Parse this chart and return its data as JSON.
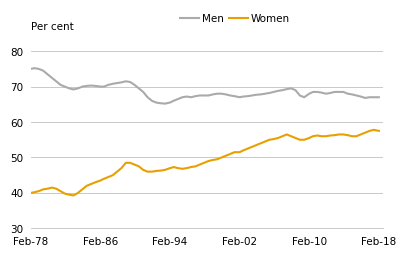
{
  "title": "",
  "ylabel": "Per cent",
  "ylim": [
    30,
    85
  ],
  "yticks": [
    30,
    40,
    50,
    60,
    70,
    80
  ],
  "xtick_labels": [
    "Feb-78",
    "Feb-86",
    "Feb-94",
    "Feb-02",
    "Feb-10",
    "Feb-18"
  ],
  "xtick_positions": [
    1978.08,
    1986.08,
    1994.08,
    2002.08,
    2010.08,
    2018.08
  ],
  "men_color": "#aaaaaa",
  "women_color": "#E8A000",
  "line_width": 1.5,
  "legend_men": "Men",
  "legend_women": "Women",
  "background_color": "#ffffff",
  "grid_color": "#c0c0c0",
  "men_data": [
    [
      1978.08,
      75.0
    ],
    [
      1978.5,
      75.2
    ],
    [
      1979.0,
      75.0
    ],
    [
      1979.5,
      74.5
    ],
    [
      1980.0,
      73.5
    ],
    [
      1980.5,
      72.5
    ],
    [
      1981.0,
      71.5
    ],
    [
      1981.5,
      70.5
    ],
    [
      1982.0,
      70.0
    ],
    [
      1982.5,
      69.5
    ],
    [
      1983.0,
      69.2
    ],
    [
      1983.5,
      69.5
    ],
    [
      1984.0,
      70.0
    ],
    [
      1984.5,
      70.2
    ],
    [
      1985.0,
      70.3
    ],
    [
      1985.5,
      70.2
    ],
    [
      1986.08,
      70.0
    ],
    [
      1986.5,
      70.0
    ],
    [
      1987.0,
      70.5
    ],
    [
      1987.5,
      70.8
    ],
    [
      1988.0,
      71.0
    ],
    [
      1988.5,
      71.2
    ],
    [
      1989.0,
      71.5
    ],
    [
      1989.5,
      71.3
    ],
    [
      1990.0,
      70.5
    ],
    [
      1990.5,
      69.5
    ],
    [
      1991.0,
      68.5
    ],
    [
      1991.5,
      67.0
    ],
    [
      1992.0,
      66.0
    ],
    [
      1992.5,
      65.5
    ],
    [
      1993.0,
      65.3
    ],
    [
      1993.5,
      65.2
    ],
    [
      1994.08,
      65.5
    ],
    [
      1994.5,
      66.0
    ],
    [
      1995.0,
      66.5
    ],
    [
      1995.5,
      67.0
    ],
    [
      1996.0,
      67.2
    ],
    [
      1996.5,
      67.0
    ],
    [
      1997.0,
      67.3
    ],
    [
      1997.5,
      67.5
    ],
    [
      1998.0,
      67.5
    ],
    [
      1998.5,
      67.5
    ],
    [
      1999.0,
      67.8
    ],
    [
      1999.5,
      68.0
    ],
    [
      2000.0,
      68.0
    ],
    [
      2000.5,
      67.8
    ],
    [
      2001.0,
      67.5
    ],
    [
      2001.5,
      67.3
    ],
    [
      2002.08,
      67.0
    ],
    [
      2002.5,
      67.2
    ],
    [
      2003.0,
      67.3
    ],
    [
      2003.5,
      67.5
    ],
    [
      2004.0,
      67.7
    ],
    [
      2004.5,
      67.8
    ],
    [
      2005.0,
      68.0
    ],
    [
      2005.5,
      68.2
    ],
    [
      2006.0,
      68.5
    ],
    [
      2006.5,
      68.8
    ],
    [
      2007.0,
      69.0
    ],
    [
      2007.5,
      69.3
    ],
    [
      2008.0,
      69.5
    ],
    [
      2008.5,
      69.0
    ],
    [
      2009.0,
      67.5
    ],
    [
      2009.5,
      67.0
    ],
    [
      2010.08,
      68.0
    ],
    [
      2010.5,
      68.5
    ],
    [
      2011.0,
      68.5
    ],
    [
      2011.5,
      68.3
    ],
    [
      2012.0,
      68.0
    ],
    [
      2012.5,
      68.2
    ],
    [
      2013.0,
      68.5
    ],
    [
      2013.5,
      68.5
    ],
    [
      2014.0,
      68.5
    ],
    [
      2014.5,
      68.0
    ],
    [
      2015.0,
      67.8
    ],
    [
      2015.5,
      67.5
    ],
    [
      2016.0,
      67.2
    ],
    [
      2016.5,
      66.8
    ],
    [
      2017.0,
      67.0
    ],
    [
      2017.5,
      67.0
    ],
    [
      2018.08,
      67.0
    ]
  ],
  "women_data": [
    [
      1978.08,
      40.0
    ],
    [
      1978.5,
      40.2
    ],
    [
      1979.0,
      40.5
    ],
    [
      1979.5,
      41.0
    ],
    [
      1980.0,
      41.2
    ],
    [
      1980.5,
      41.5
    ],
    [
      1981.0,
      41.2
    ],
    [
      1981.5,
      40.5
    ],
    [
      1982.0,
      39.8
    ],
    [
      1982.5,
      39.5
    ],
    [
      1983.0,
      39.3
    ],
    [
      1983.5,
      40.0
    ],
    [
      1984.0,
      41.0
    ],
    [
      1984.5,
      42.0
    ],
    [
      1985.0,
      42.5
    ],
    [
      1985.5,
      43.0
    ],
    [
      1986.08,
      43.5
    ],
    [
      1986.5,
      44.0
    ],
    [
      1987.0,
      44.5
    ],
    [
      1987.5,
      45.0
    ],
    [
      1988.0,
      46.0
    ],
    [
      1988.5,
      47.0
    ],
    [
      1989.0,
      48.5
    ],
    [
      1989.5,
      48.5
    ],
    [
      1990.0,
      48.0
    ],
    [
      1990.5,
      47.5
    ],
    [
      1991.0,
      46.5
    ],
    [
      1991.5,
      46.0
    ],
    [
      1992.0,
      46.0
    ],
    [
      1992.5,
      46.2
    ],
    [
      1993.0,
      46.3
    ],
    [
      1993.5,
      46.5
    ],
    [
      1994.08,
      47.0
    ],
    [
      1994.5,
      47.3
    ],
    [
      1995.0,
      47.0
    ],
    [
      1995.5,
      46.8
    ],
    [
      1996.0,
      47.0
    ],
    [
      1996.5,
      47.3
    ],
    [
      1997.0,
      47.5
    ],
    [
      1997.5,
      48.0
    ],
    [
      1998.0,
      48.5
    ],
    [
      1998.5,
      49.0
    ],
    [
      1999.0,
      49.3
    ],
    [
      1999.5,
      49.5
    ],
    [
      2000.0,
      50.0
    ],
    [
      2000.5,
      50.5
    ],
    [
      2001.0,
      51.0
    ],
    [
      2001.5,
      51.5
    ],
    [
      2002.08,
      51.5
    ],
    [
      2002.5,
      52.0
    ],
    [
      2003.0,
      52.5
    ],
    [
      2003.5,
      53.0
    ],
    [
      2004.0,
      53.5
    ],
    [
      2004.5,
      54.0
    ],
    [
      2005.0,
      54.5
    ],
    [
      2005.5,
      55.0
    ],
    [
      2006.0,
      55.2
    ],
    [
      2006.5,
      55.5
    ],
    [
      2007.0,
      56.0
    ],
    [
      2007.5,
      56.5
    ],
    [
      2008.0,
      56.0
    ],
    [
      2008.5,
      55.5
    ],
    [
      2009.0,
      55.0
    ],
    [
      2009.5,
      55.0
    ],
    [
      2010.08,
      55.5
    ],
    [
      2010.5,
      56.0
    ],
    [
      2011.0,
      56.2
    ],
    [
      2011.5,
      56.0
    ],
    [
      2012.0,
      56.0
    ],
    [
      2012.5,
      56.2
    ],
    [
      2013.0,
      56.3
    ],
    [
      2013.5,
      56.5
    ],
    [
      2014.0,
      56.5
    ],
    [
      2014.5,
      56.3
    ],
    [
      2015.0,
      56.0
    ],
    [
      2015.5,
      56.0
    ],
    [
      2016.0,
      56.5
    ],
    [
      2016.5,
      57.0
    ],
    [
      2017.0,
      57.5
    ],
    [
      2017.5,
      57.8
    ],
    [
      2018.08,
      57.5
    ]
  ]
}
